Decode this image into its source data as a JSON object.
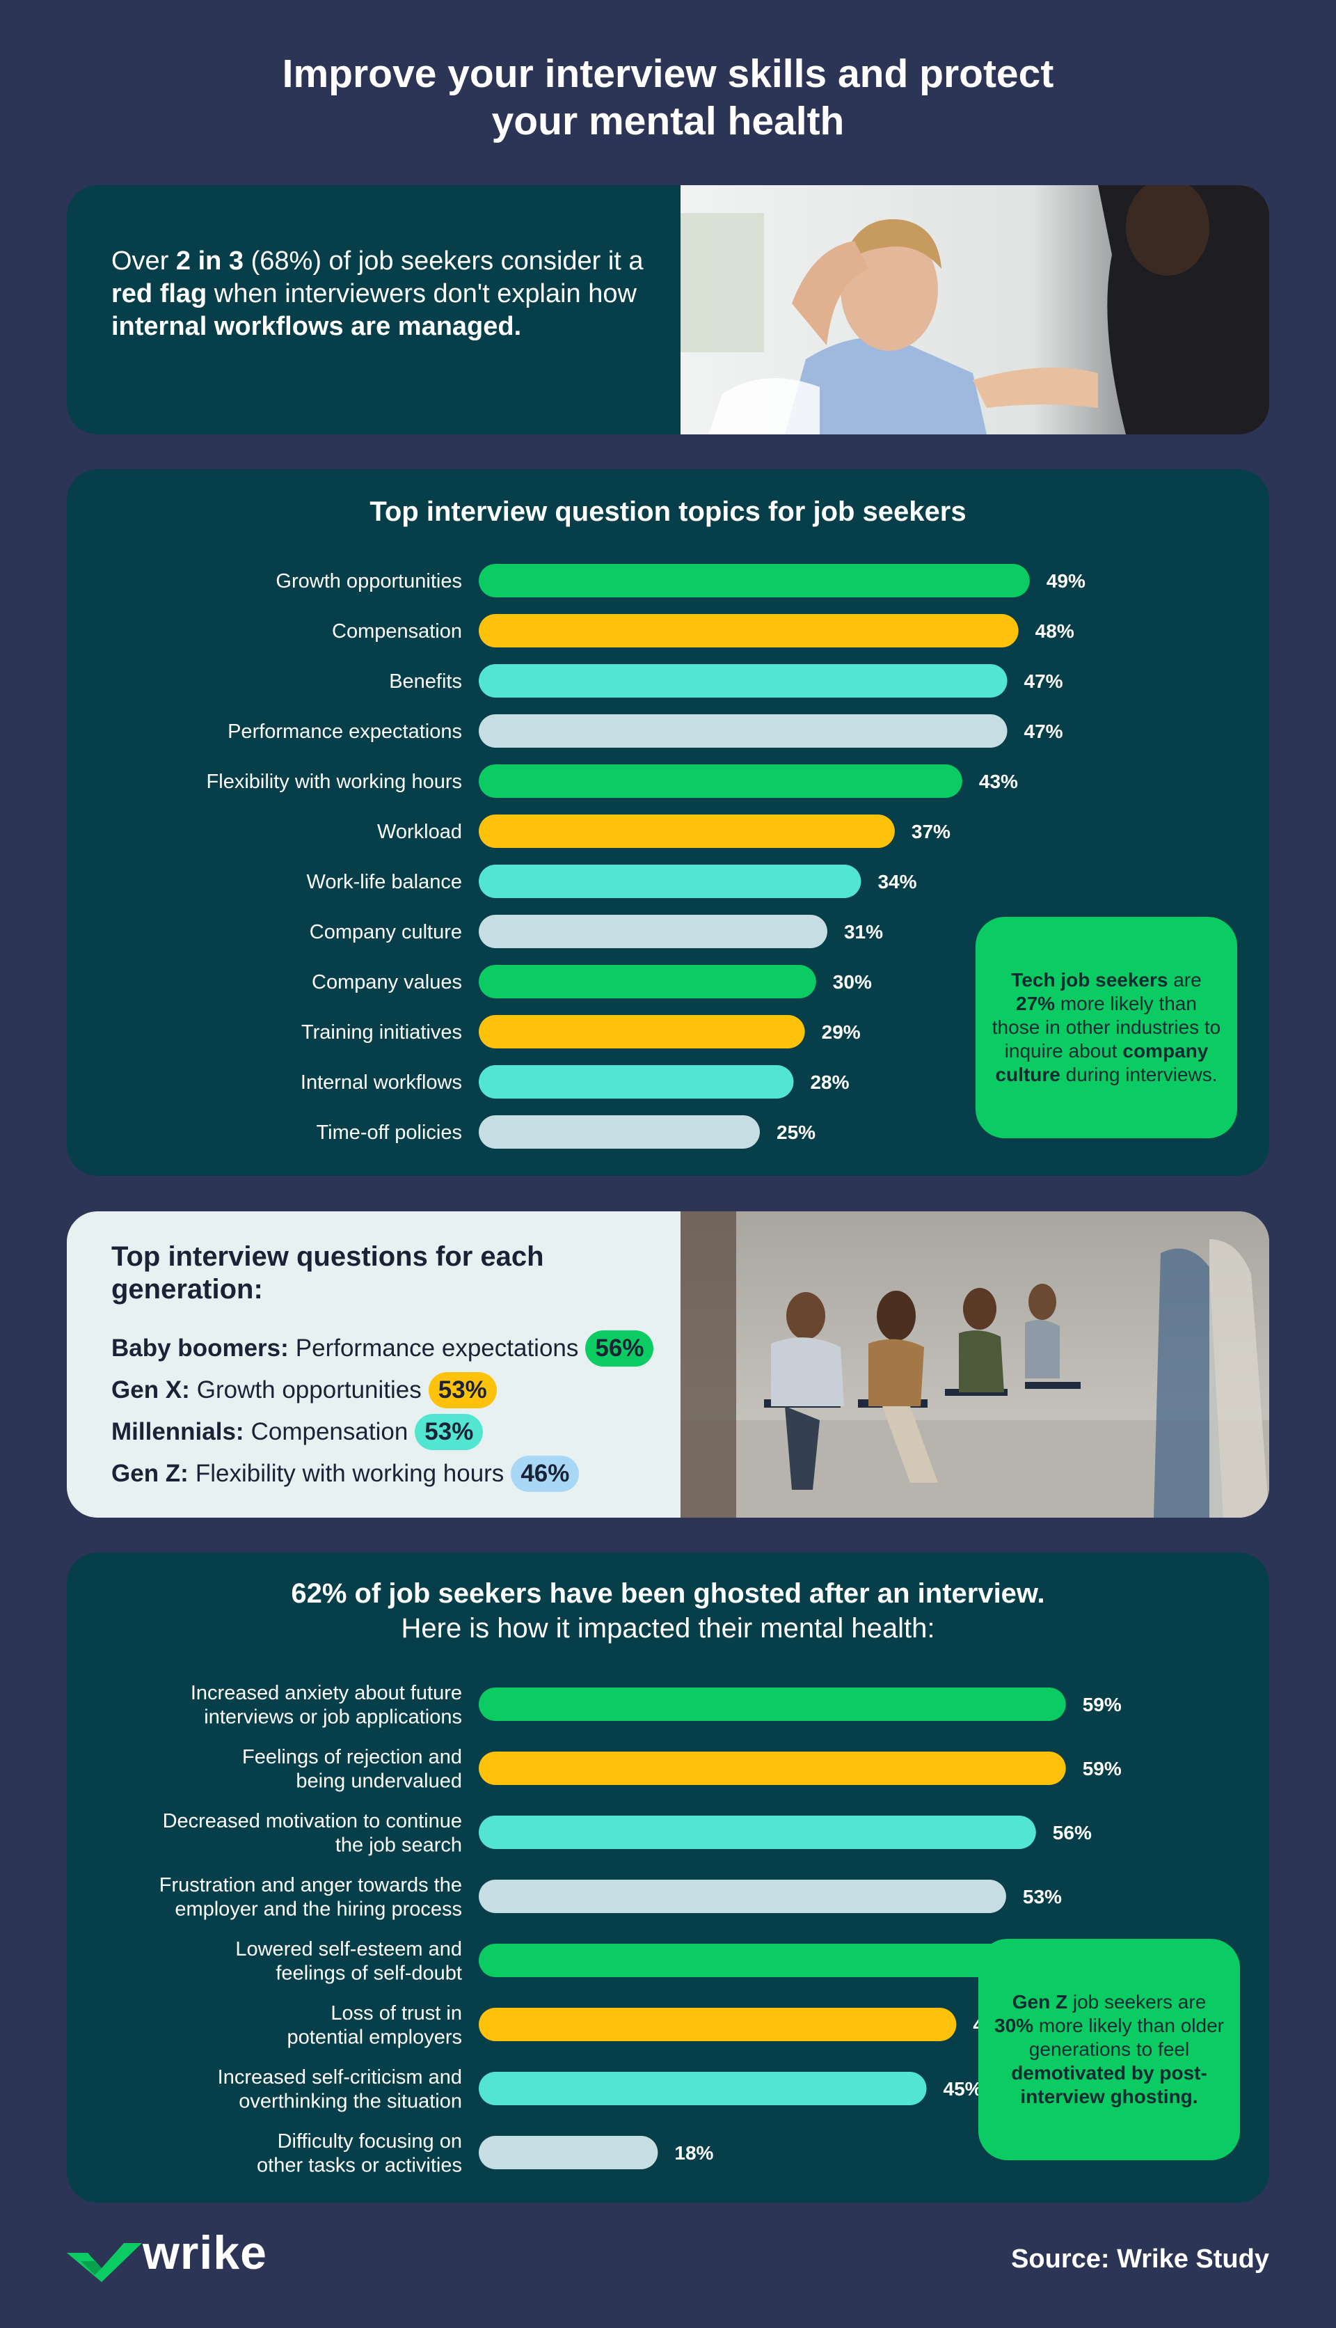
{
  "title_line1": "Improve your interview skills and protect",
  "title_line2": "your mental health",
  "card1": {
    "p1": "Over ",
    "b1": "2 in 3",
    "p2": " (68%) of job seekers consider it a ",
    "b2": "red flag",
    "p3": " when interviewers don't explain how ",
    "b3": "internal workflows are managed."
  },
  "colors": {
    "green": "#0bcc63",
    "yellow": "#fec20b",
    "teal": "#52e6d2",
    "grey": "#c5dde3",
    "card": "#063f49",
    "background": "#2d3556"
  },
  "chart_data": [
    {
      "type": "bar",
      "orientation": "horizontal",
      "title": "Top interview question topics for job seekers",
      "categories": [
        "Growth opportunities",
        "Compensation",
        "Benefits",
        "Performance expectations",
        "Flexibility with working hours",
        "Workload",
        "Work-life balance",
        "Company culture",
        "Company values",
        "Training initiatives",
        "Internal workflows",
        "Time-off policies"
      ],
      "values": [
        49,
        48,
        47,
        47,
        43,
        37,
        34,
        31,
        30,
        29,
        28,
        25
      ],
      "value_labels": [
        "49%",
        "48%",
        "47%",
        "47%",
        "43%",
        "37%",
        "34%",
        "31%",
        "30%",
        "29%",
        "28%",
        "25%"
      ],
      "bar_colors": [
        "#0bcc63",
        "#fec20b",
        "#52e6d2",
        "#c5dde3",
        "#0bcc63",
        "#fec20b",
        "#52e6d2",
        "#c5dde3",
        "#0bcc63",
        "#fec20b",
        "#52e6d2",
        "#c5dde3"
      ],
      "unit": "%"
    },
    {
      "type": "bar",
      "orientation": "horizontal",
      "title": "62% of job seekers have been ghosted after an interview.",
      "subtitle": "Here is how it impacted their mental health:",
      "categories": [
        [
          "Increased anxiety about future",
          "interviews or job applications"
        ],
        [
          "Feelings of rejection and",
          "being undervalued"
        ],
        [
          "Decreased motivation to continue",
          "the job search"
        ],
        [
          "Frustration and anger towards the",
          "employer and the hiring process"
        ],
        [
          "Lowered self-esteem and",
          "feelings of self-doubt"
        ],
        [
          "Loss of trust in",
          "potential employers"
        ],
        [
          "Increased self-criticism and",
          "overthinking the situation"
        ],
        [
          "Difficulty focusing on",
          "other tasks or activities"
        ]
      ],
      "values": [
        59,
        59,
        56,
        53,
        53,
        48,
        45,
        18
      ],
      "value_labels": [
        "59%",
        "59%",
        "56%",
        "53%",
        "53%",
        "48%",
        "45%",
        "18%"
      ],
      "bar_colors": [
        "#0bcc63",
        "#fec20b",
        "#52e6d2",
        "#c5dde3",
        "#0bcc63",
        "#fec20b",
        "#52e6d2",
        "#c5dde3"
      ],
      "unit": "%"
    }
  ],
  "callout1": {
    "b1": "Tech job seekers",
    "t1": " are ",
    "b2": "27%",
    "t2": " more likely than those in other industries to inquire about ",
    "b3": "company culture",
    "t3": " during interviews."
  },
  "callout2": {
    "b1": "Gen Z",
    "t1": " job seekers are ",
    "b2": "30%",
    "t2": " more likely than older generations to feel ",
    "b3": "demotivated by post-interview ghosting."
  },
  "generations": {
    "title": "Top interview questions for each generation:",
    "rows": [
      {
        "gen": "Baby boomers:",
        "topic": "Performance expectations",
        "pct": "56%",
        "color": "#0bcc63"
      },
      {
        "gen": "Gen X:",
        "topic": "Growth opportunities",
        "pct": "53%",
        "color": "#fec20b"
      },
      {
        "gen": "Millennials:",
        "topic": "Compensation",
        "pct": "53%",
        "color": "#52e6d2"
      },
      {
        "gen": "Gen Z:",
        "topic": "Flexibility with working hours",
        "pct": "46%",
        "color": "#a8d8f5"
      }
    ]
  },
  "footer": {
    "brand": "wrike",
    "source": "Source: Wrike Study"
  }
}
